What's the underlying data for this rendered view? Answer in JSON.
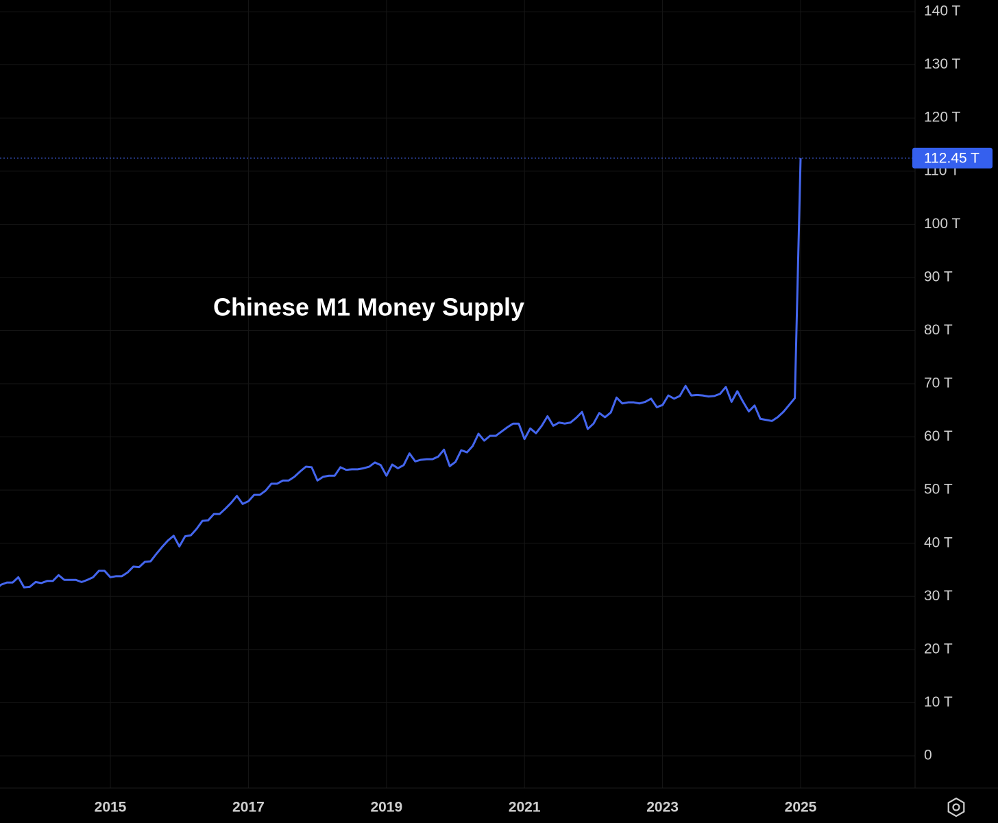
{
  "chart_data": {
    "type": "line",
    "annotation": "Chinese M1 Money Supply",
    "color": "#4466ee",
    "categories": [
      null,
      null,
      null,
      null,
      null,
      null,
      null,
      null,
      null,
      null,
      null,
      null,
      null,
      null,
      null,
      null,
      null,
      null,
      null,
      null,
      "2015",
      null,
      null,
      null,
      null,
      null,
      null,
      null,
      null,
      null,
      null,
      null,
      null,
      null,
      null,
      null,
      null,
      null,
      null,
      null,
      null,
      null,
      null,
      null,
      "2017",
      null,
      null,
      null,
      null,
      null,
      null,
      null,
      null,
      null,
      null,
      null,
      null,
      null,
      null,
      null,
      null,
      null,
      null,
      null,
      null,
      null,
      null,
      null,
      "2019",
      null,
      null,
      null,
      null,
      null,
      null,
      null,
      null,
      null,
      null,
      null,
      null,
      null,
      null,
      null,
      null,
      null,
      null,
      null,
      null,
      null,
      null,
      null,
      "2021",
      null,
      null,
      null,
      null,
      null,
      null,
      null,
      null,
      null,
      null,
      null,
      null,
      null,
      null,
      null,
      null,
      null,
      null,
      null,
      null,
      null,
      null,
      null,
      "2023",
      null,
      null,
      null,
      null,
      null,
      null,
      null,
      null,
      null,
      null,
      null,
      null,
      null,
      null,
      null,
      null,
      null,
      null,
      null,
      null,
      null,
      null,
      null,
      "2025"
    ],
    "values": [
      31.3,
      32.2,
      32.6,
      32.6,
      33.6,
      31.7,
      31.8,
      32.7,
      32.5,
      32.9,
      32.9,
      34.0,
      33.1,
      33.1,
      33.1,
      32.7,
      33.1,
      33.6,
      34.8,
      34.8,
      33.6,
      33.8,
      33.8,
      34.5,
      35.6,
      35.5,
      36.5,
      36.6,
      38.0,
      39.3,
      40.5,
      41.4,
      39.4,
      41.3,
      41.5,
      42.7,
      44.2,
      44.3,
      45.5,
      45.5,
      46.5,
      47.6,
      48.9,
      47.4,
      47.9,
      49.1,
      49.1,
      49.9,
      51.2,
      51.2,
      51.8,
      51.8,
      52.5,
      53.5,
      54.4,
      54.3,
      51.8,
      52.5,
      52.7,
      52.7,
      54.3,
      53.8,
      53.9,
      53.9,
      54.1,
      54.4,
      55.2,
      54.7,
      52.7,
      54.8,
      54.1,
      54.7,
      56.9,
      55.4,
      55.7,
      55.8,
      55.8,
      56.3,
      57.6,
      54.5,
      55.3,
      57.5,
      57.1,
      58.3,
      60.6,
      59.3,
      60.2,
      60.2,
      61.0,
      61.8,
      62.5,
      62.5,
      59.6,
      61.6,
      60.7,
      62.1,
      63.9,
      62.1,
      62.7,
      62.5,
      62.7,
      63.6,
      64.7,
      61.5,
      62.5,
      64.5,
      63.7,
      64.6,
      67.4,
      66.3,
      66.5,
      66.5,
      66.3,
      66.6,
      67.2,
      65.6,
      66.0,
      67.8,
      67.2,
      67.7,
      69.6,
      67.8,
      67.9,
      67.8,
      67.6,
      67.7,
      68.1,
      69.4,
      66.6,
      68.6,
      66.6,
      64.8,
      65.9,
      63.4,
      63.2,
      63.0,
      63.7,
      64.7,
      66.0,
      67.3,
      112.45
    ],
    "last_value": {
      "value": 112.45,
      "label": "112.45 T"
    },
    "ylim": [
      -6.06,
      142.2
    ],
    "yticks": [
      0,
      {
        "value": 10,
        "label": "10 T"
      },
      {
        "value": 20,
        "label": "20 T"
      },
      {
        "value": 30,
        "label": "30 T"
      },
      {
        "value": 40,
        "label": "40 T"
      },
      {
        "value": 50,
        "label": "50 T"
      },
      {
        "value": 60,
        "label": "60 T"
      },
      {
        "value": 70,
        "label": "70 T"
      },
      {
        "value": 80,
        "label": "80 T"
      },
      {
        "value": 90,
        "label": "90 T"
      },
      {
        "value": 100,
        "label": "100 T"
      },
      {
        "value": 110,
        "label": "110 T"
      },
      {
        "value": 120,
        "label": "120 T"
      },
      {
        "value": 130,
        "label": "130 T"
      },
      {
        "value": 140,
        "label": "140 T"
      }
    ],
    "grid": true
  }
}
